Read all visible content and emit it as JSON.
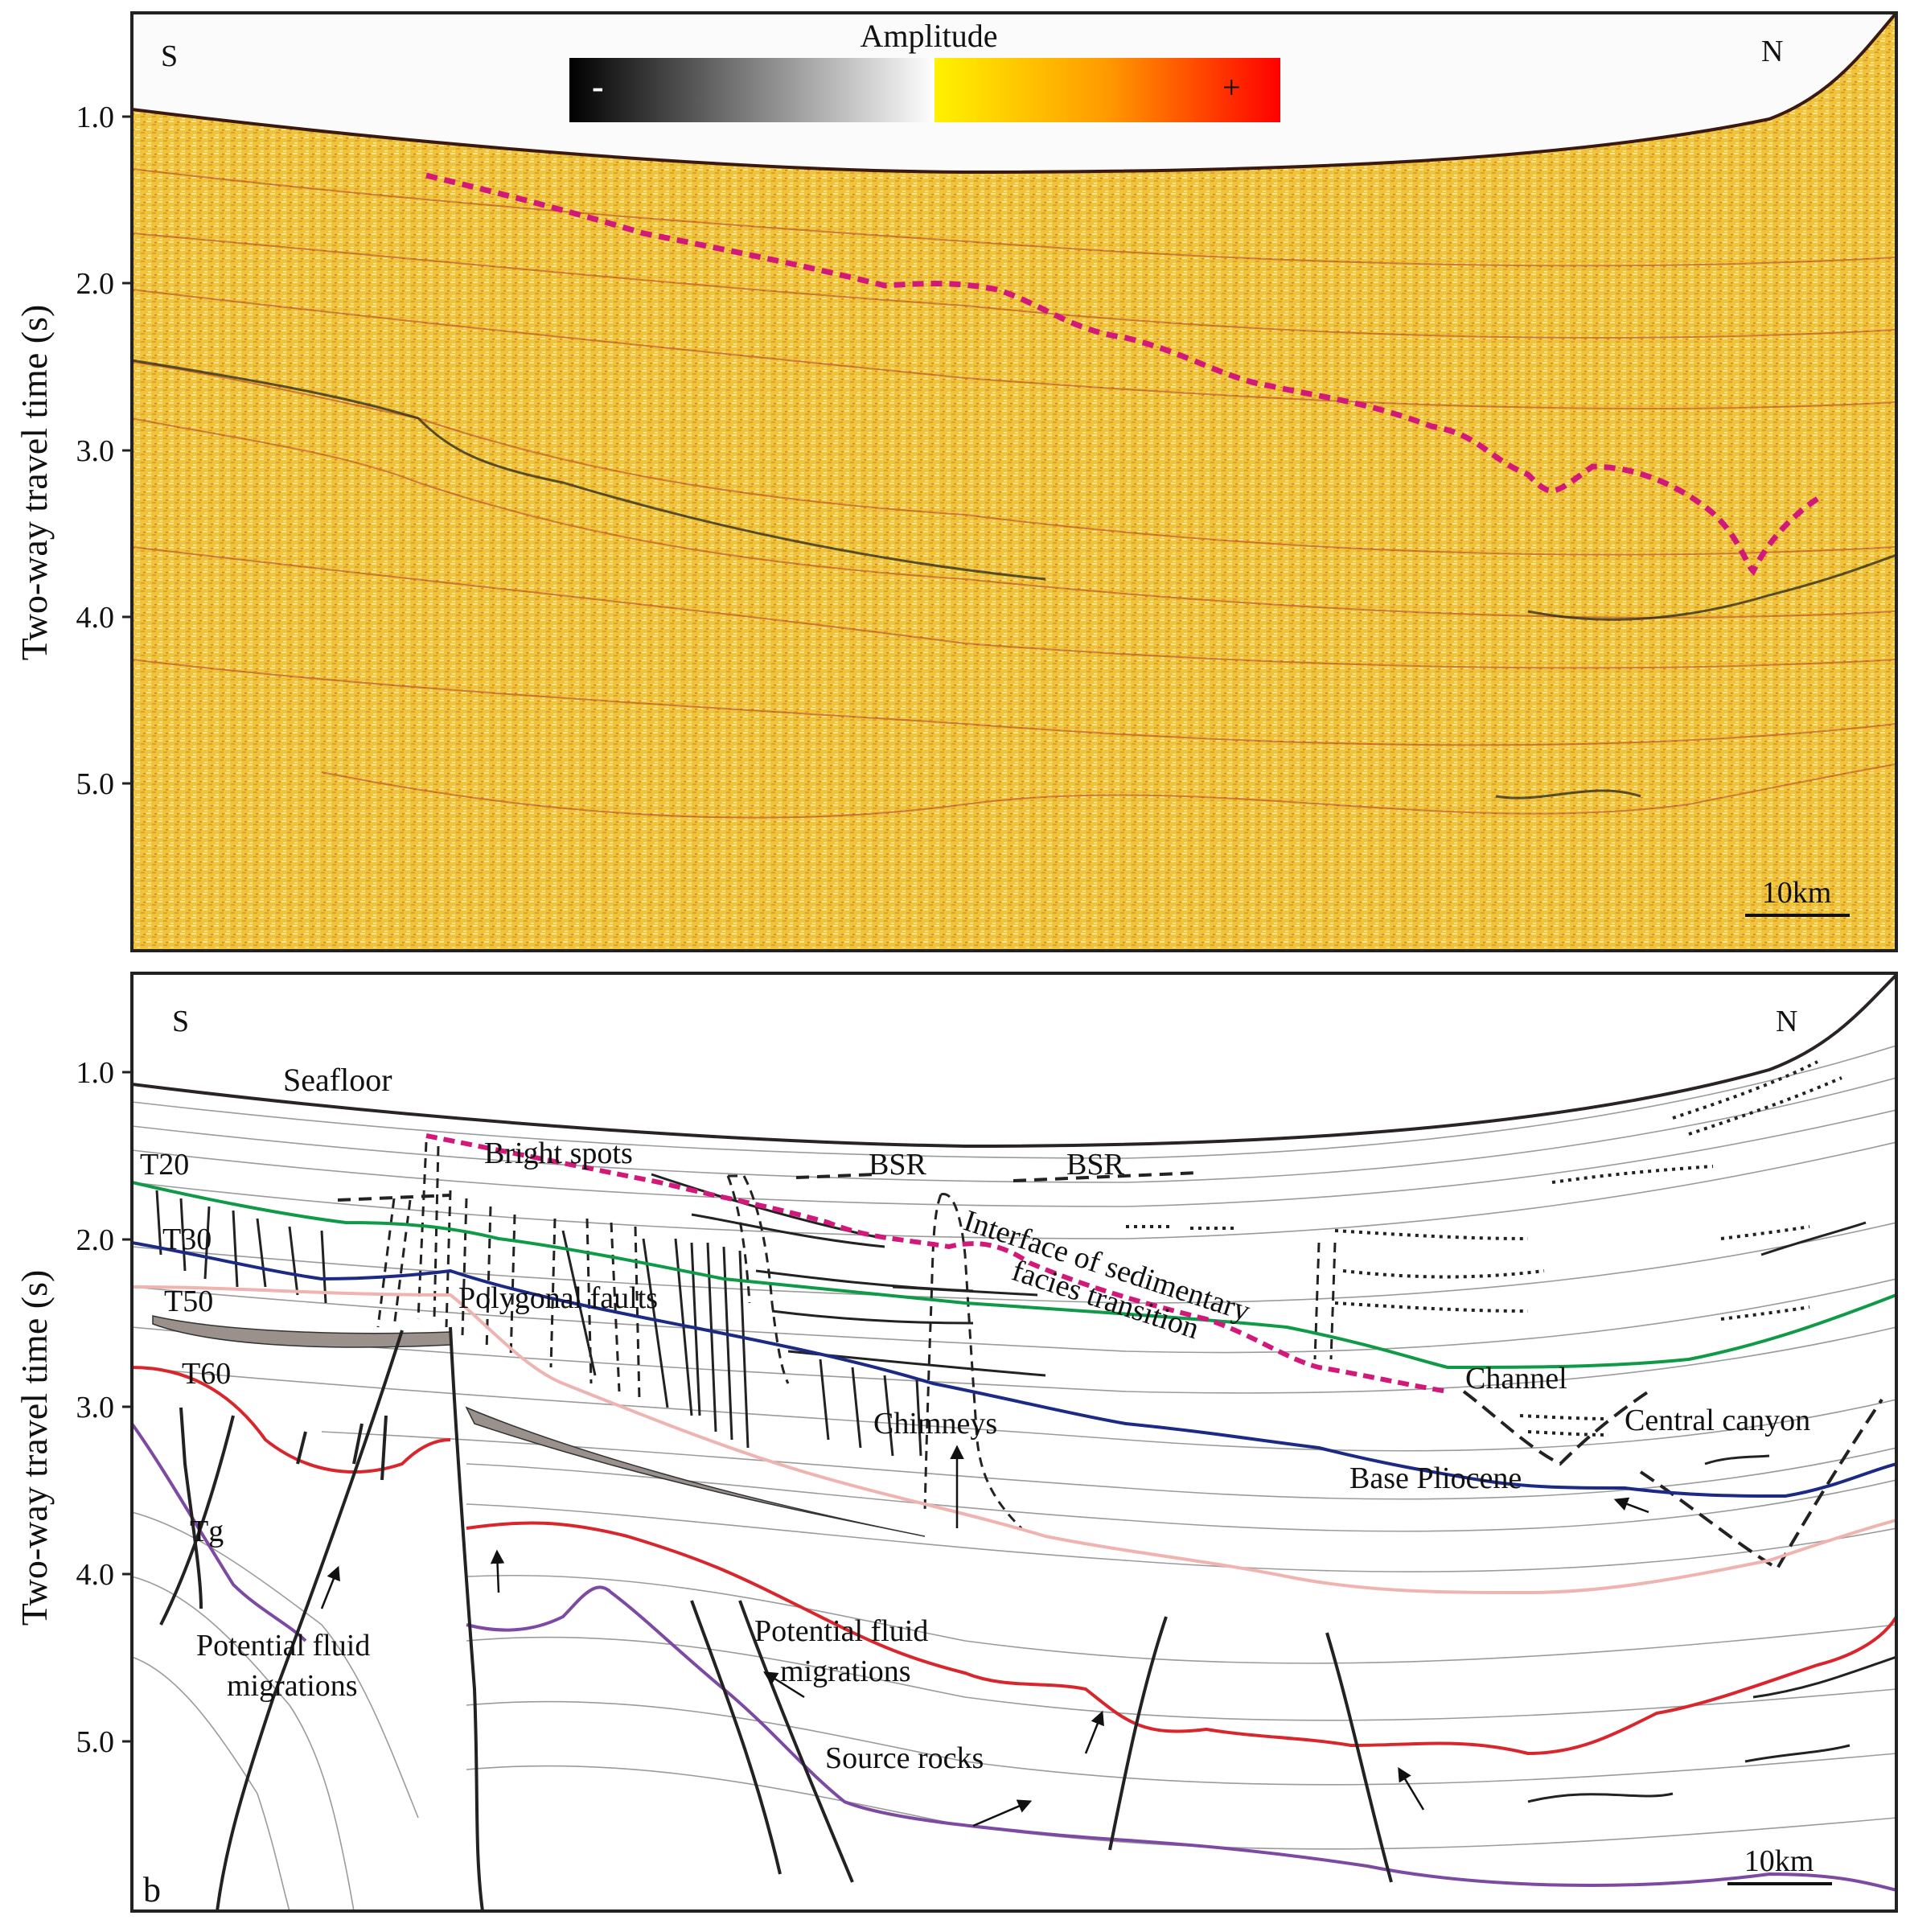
{
  "colors": {
    "seafloor": "#2a2326",
    "pink_dashed": "#d2197a",
    "green_T20": "#0f9a48",
    "blue_T30": "#1c2a86",
    "light_pink_T50": "#efb3b0",
    "red_T60": "#d9262c",
    "purple_Tg": "#7d4aa3",
    "gray_lines": "#9b9b9b",
    "seismic_bg": "#efc43a"
  },
  "panel_a": {
    "y_axis_label": "Two-way travel time (s)",
    "y_ticks": [
      "1.0",
      "2.0",
      "3.0",
      "4.0",
      "5.0"
    ],
    "left_label": "S",
    "right_label": "N",
    "colorbar_title": "Amplitude",
    "colorbar_negative": "-",
    "colorbar_positive": "+",
    "scale_bar": "10km"
  },
  "panel_b": {
    "panel_letter": "b",
    "y_axis_label": "Two-way travel time (s)",
    "y_ticks": [
      "1.0",
      "2.0",
      "3.0",
      "4.0",
      "5.0"
    ],
    "left_label": "S",
    "right_label": "N",
    "scale_bar": "10km",
    "horizon_labels": {
      "seafloor": "Seafloor",
      "t20": "T20",
      "t30": "T30",
      "t50": "T50",
      "t60": "T60",
      "tg": "Tg"
    },
    "annotations": {
      "bright_spots": "Bright  spots",
      "bsr_1": "BSR",
      "bsr_2": "BSR",
      "interface": "Interface of sedimentary",
      "facies": "facies transition",
      "polygonal_faults": "Polygonal faults",
      "chimneys": "Chimneys",
      "channel": "Channel",
      "central_canyon": "Central canyon",
      "base_pliocene": "Base Pliocene",
      "fluid_left_1": "Potential fluid",
      "fluid_left_2": "migrations",
      "fluid_mid_1": "Potential fluid",
      "fluid_mid_2": "migrations",
      "source_rocks": "Source  rocks"
    }
  }
}
